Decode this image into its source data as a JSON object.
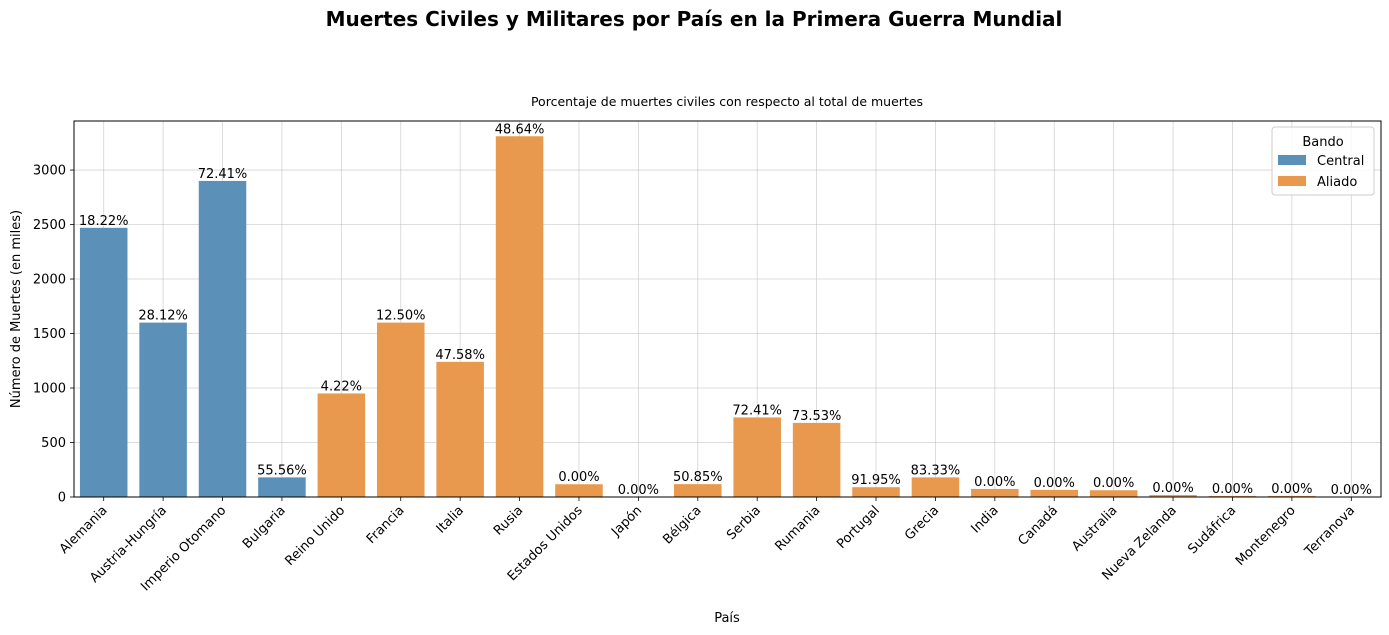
{
  "chart_data": {
    "type": "bar",
    "title": "Muertes Civiles y Militares por País en la Primera Guerra Mundial",
    "subtitle": "Porcentaje de muertes civiles con respecto al total de muertes",
    "xlabel": "País",
    "ylabel": "Número de Muertes (en miles)",
    "ylim": [
      0,
      3450
    ],
    "yticks": [
      0,
      500,
      1000,
      1500,
      2000,
      2500,
      3000
    ],
    "grid": true,
    "legend": {
      "title": "Bando",
      "placement": "top-right",
      "entries": [
        {
          "name": "Central",
          "color": "#5b90b8"
        },
        {
          "name": "Aliado",
          "color": "#e8994e"
        }
      ]
    },
    "categories": [
      "Alemania",
      "Austria-Hungría",
      "Imperio Otomano",
      "Bulgaria",
      "Reino Unido",
      "Francia",
      "Italia",
      "Rusia",
      "Estados Unidos",
      "Japón",
      "Bélgica",
      "Serbia",
      "Rumania",
      "Portugal",
      "Grecia",
      "India",
      "Canadá",
      "Australia",
      "Nueva Zelanda",
      "Sudáfrica",
      "Montenegro",
      "Terranova"
    ],
    "bando": [
      "Central",
      "Central",
      "Central",
      "Central",
      "Aliado",
      "Aliado",
      "Aliado",
      "Aliado",
      "Aliado",
      "Aliado",
      "Aliado",
      "Aliado",
      "Aliado",
      "Aliado",
      "Aliado",
      "Aliado",
      "Aliado",
      "Aliado",
      "Aliado",
      "Aliado",
      "Aliado",
      "Aliado"
    ],
    "values": [
      2470,
      1600,
      2900,
      180,
      950,
      1600,
      1240,
      3310,
      117,
      0,
      118,
      730,
      680,
      90,
      180,
      74,
      65,
      62,
      18,
      10,
      10,
      2
    ],
    "labels": [
      "18.22%",
      "28.12%",
      "72.41%",
      "55.56%",
      "4.22%",
      "12.50%",
      "47.58%",
      "48.64%",
      "0.00%",
      "0.00%",
      "50.85%",
      "72.41%",
      "73.53%",
      "91.95%",
      "83.33%",
      "0.00%",
      "0.00%",
      "0.00%",
      "0.00%",
      "0.00%",
      "0.00%",
      "0.00%"
    ]
  }
}
